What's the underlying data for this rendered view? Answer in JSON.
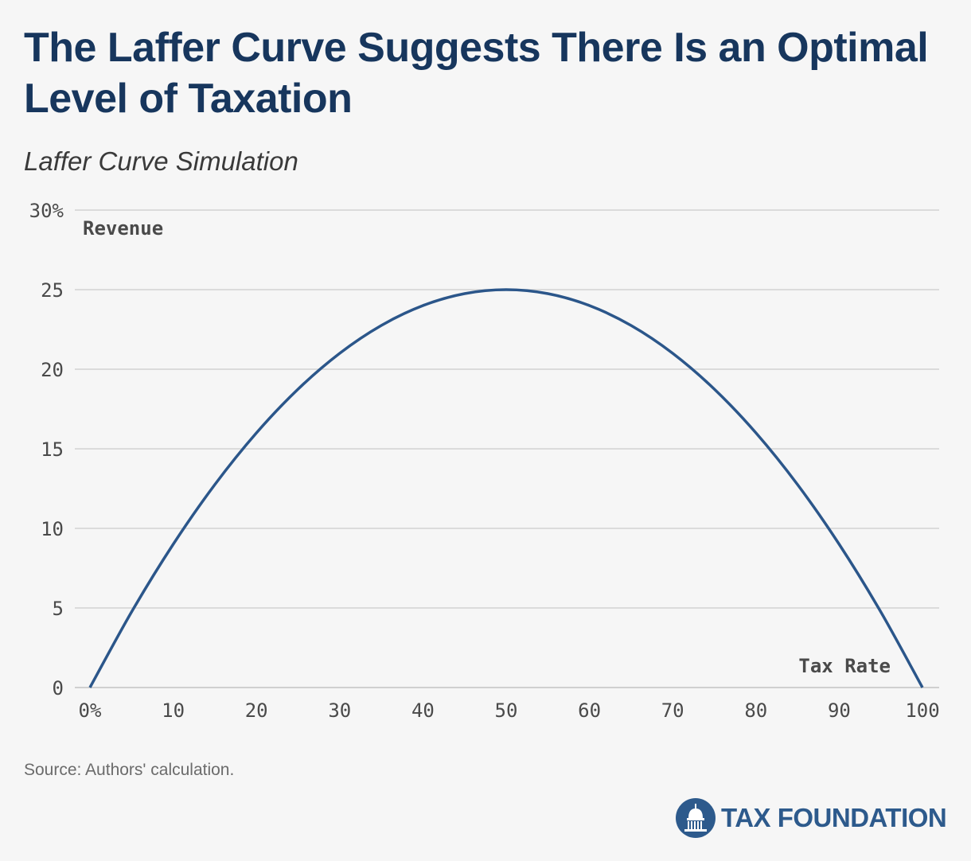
{
  "header": {
    "title": "The Laffer Curve Suggests There Is an Optimal Level of Taxation",
    "subtitle": "Laffer Curve Simulation"
  },
  "footer": {
    "source": "Source: Authors' calculation.",
    "logo_text": "TAX FOUNDATION"
  },
  "colors": {
    "title": "#17365d",
    "line": "#2b568a",
    "grid": "#d2d2d2",
    "axis_text": "#4a4a4a",
    "logo": "#2d5a8c"
  },
  "chart_data": {
    "type": "line",
    "xlabel": "Tax Rate",
    "ylabel": "Revenue",
    "xlim": [
      0,
      100
    ],
    "ylim": [
      0,
      30
    ],
    "x_ticks": [
      0,
      10,
      20,
      30,
      40,
      50,
      60,
      70,
      80,
      90,
      100
    ],
    "x_tick_labels": [
      "0%",
      "10",
      "20",
      "30",
      "40",
      "50",
      "60",
      "70",
      "80",
      "90",
      "100"
    ],
    "y_ticks": [
      0,
      5,
      10,
      15,
      20,
      25,
      30
    ],
    "y_tick_labels": [
      "0",
      "5",
      "10",
      "15",
      "20",
      "25",
      "30%"
    ],
    "grid": true,
    "series": [
      {
        "x": [
          0,
          5,
          10,
          15,
          20,
          25,
          30,
          35,
          40,
          45,
          50,
          55,
          60,
          65,
          70,
          75,
          80,
          85,
          90,
          95,
          100
        ],
        "values": [
          0,
          4.75,
          9,
          12.75,
          16,
          18.75,
          21,
          22.75,
          24,
          24.75,
          25,
          24.75,
          24,
          22.75,
          21,
          18.75,
          16,
          12.75,
          9,
          4.75,
          0
        ]
      }
    ]
  }
}
